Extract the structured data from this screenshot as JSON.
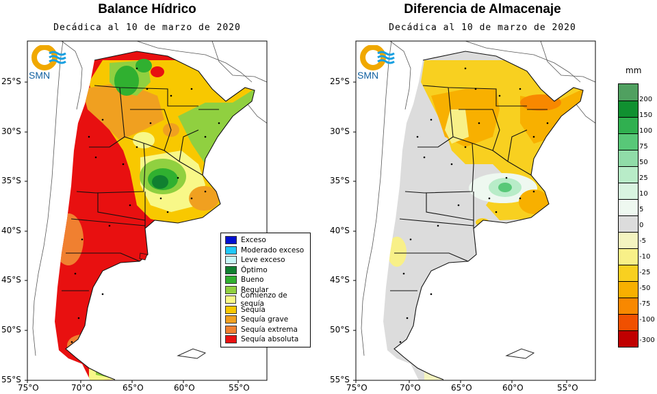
{
  "left_map": {
    "title": "Balance Hídrico",
    "subtitle": "Decádica al 10 de marzo de 2020",
    "logo_text": "SMN",
    "lat_labels": [
      "25°S",
      "30°S",
      "35°S",
      "40°S",
      "45°S",
      "50°S",
      "55°S"
    ],
    "lon_labels": [
      "75°O",
      "70°O",
      "65°O",
      "60°O",
      "55°O"
    ],
    "legend": [
      {
        "label": "Exceso",
        "color": "#0010d0"
      },
      {
        "label": "Moderado exceso",
        "color": "#20c8f8"
      },
      {
        "label": "Leve exceso",
        "color": "#c8f8f8"
      },
      {
        "label": "Óptimo",
        "color": "#108030"
      },
      {
        "label": "Bueno",
        "color": "#30b030"
      },
      {
        "label": "Regular",
        "color": "#90d040"
      },
      {
        "label": "Comienzo de sequía",
        "color": "#f8f888"
      },
      {
        "label": "Sequía",
        "color": "#f8c800"
      },
      {
        "label": "Sequía grave",
        "color": "#f0a020"
      },
      {
        "label": "Sequía extrema",
        "color": "#f08030"
      },
      {
        "label": "Sequía absoluta",
        "color": "#e81010"
      }
    ]
  },
  "right_map": {
    "title": "Diferencia de Almacenaje",
    "subtitle": "Decádica al 10 de marzo de 2020",
    "logo_text": "SMN",
    "lat_labels": [
      "25°S",
      "30°S",
      "35°S",
      "40°S",
      "45°S",
      "50°S",
      "55°S"
    ],
    "lon_labels": [
      "75°O",
      "70°O",
      "65°O",
      "60°O",
      "55°O"
    ],
    "colorbar_unit": "mm",
    "colorbar": [
      {
        "label": "200",
        "color": "#50a060"
      },
      {
        "label": "150",
        "color": "#109030"
      },
      {
        "label": "100",
        "color": "#30b050"
      },
      {
        "label": "75",
        "color": "#58c878"
      },
      {
        "label": "50",
        "color": "#90dca8"
      },
      {
        "label": "25",
        "color": "#b8ecc8"
      },
      {
        "label": "10",
        "color": "#d8f4e0"
      },
      {
        "label": "5",
        "color": "#eef8f0"
      },
      {
        "label": "0",
        "color": "#dcdcdc"
      },
      {
        "label": "-5",
        "color": "#f4f4c0"
      },
      {
        "label": "-10",
        "color": "#f8f088"
      },
      {
        "label": "-25",
        "color": "#f8d020"
      },
      {
        "label": "-50",
        "color": "#f8b000"
      },
      {
        "label": "-75",
        "color": "#f88800"
      },
      {
        "label": "-100",
        "color": "#f05000"
      },
      {
        "label": "-300",
        "color": "#c00000"
      }
    ]
  }
}
